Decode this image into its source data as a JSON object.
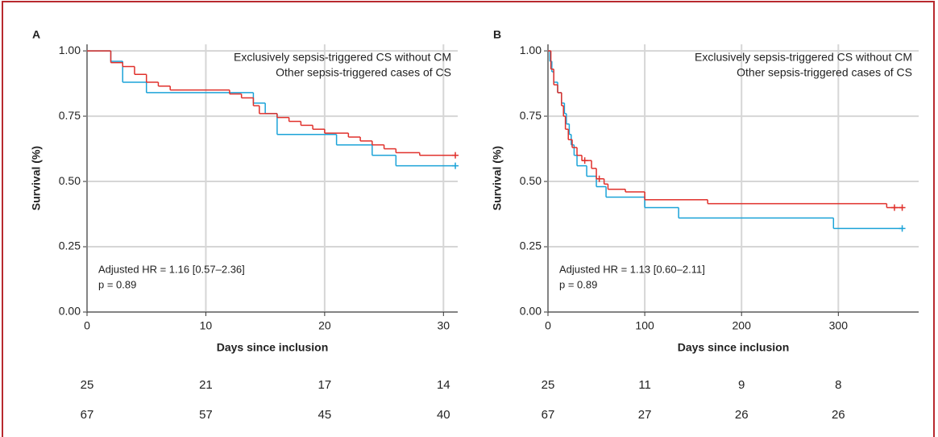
{
  "chart_data": [
    {
      "type": "step",
      "panel_label": "A",
      "xlabel": "Days since inclusion",
      "ylabel": "Survival (%)",
      "xlim": [
        0,
        31.2
      ],
      "ylim": [
        0,
        1.025
      ],
      "xticks": [
        0,
        10,
        20,
        30
      ],
      "yticks": [
        {
          "value": 0,
          "label": "0.00"
        },
        {
          "value": 0.25,
          "label": "0.25"
        },
        {
          "value": 0.5,
          "label": "0.50"
        },
        {
          "value": 0.75,
          "label": "0.75"
        },
        {
          "value": 1,
          "label": "1.00"
        }
      ],
      "grid": true,
      "annotations": [
        "Adjusted HR = 1.16 [0.57–2.36]",
        "p = 0.89"
      ],
      "series": [
        {
          "name": "Exclusively sepsis-triggered CS without CM",
          "color": "#1ba3d8",
          "x": [
            0,
            2,
            3,
            5,
            14,
            15,
            16,
            21,
            24,
            26,
            31
          ],
          "values": [
            1.0,
            0.96,
            0.88,
            0.84,
            0.8,
            0.76,
            0.68,
            0.64,
            0.6,
            0.56,
            0.56
          ],
          "censored": [],
          "at_risk": [
            25,
            21,
            17,
            14
          ]
        },
        {
          "name": "Other sepsis-triggered cases of CS",
          "color": "#e0302b",
          "x": [
            0,
            2,
            3,
            4,
            5,
            6,
            7,
            12,
            13,
            14,
            14.5,
            16,
            17,
            18,
            19,
            20,
            22,
            23,
            24,
            25,
            26,
            28,
            31
          ],
          "values": [
            1.0,
            0.955,
            0.94,
            0.91,
            0.88,
            0.865,
            0.85,
            0.835,
            0.82,
            0.79,
            0.76,
            0.745,
            0.73,
            0.715,
            0.7,
            0.685,
            0.67,
            0.655,
            0.64,
            0.625,
            0.61,
            0.6,
            0.6
          ],
          "censored": [],
          "at_risk": [
            67,
            57,
            45,
            40
          ]
        }
      ]
    },
    {
      "type": "step",
      "panel_label": "B",
      "xlabel": "Days since inclusion",
      "ylabel": "Survival (%)",
      "xlim": [
        0,
        383
      ],
      "ylim": [
        0,
        1.025
      ],
      "xticks": [
        0,
        100,
        200,
        300
      ],
      "yticks": [
        {
          "value": 0,
          "label": "0.00"
        },
        {
          "value": 0.25,
          "label": "0.25"
        },
        {
          "value": 0.5,
          "label": "0.50"
        },
        {
          "value": 0.75,
          "label": "0.75"
        },
        {
          "value": 1,
          "label": "1.00"
        }
      ],
      "grid": true,
      "annotations": [
        "Adjusted HR = 1.13 [0.60–2.11]",
        "p = 0.89"
      ],
      "series": [
        {
          "name": "Exclusively sepsis-triggered CS without CM",
          "color": "#1ba3d8",
          "x": [
            0,
            2,
            4,
            6,
            10,
            14,
            17,
            19,
            22,
            24,
            27,
            30,
            40,
            50,
            60,
            100,
            135,
            295,
            366
          ],
          "values": [
            1.0,
            0.96,
            0.92,
            0.88,
            0.84,
            0.8,
            0.76,
            0.72,
            0.68,
            0.64,
            0.6,
            0.56,
            0.52,
            0.48,
            0.44,
            0.4,
            0.36,
            0.32,
            0.32
          ],
          "censored": [],
          "at_risk": [
            25,
            11,
            9,
            8
          ]
        },
        {
          "name": "Other sepsis-triggered cases of CS",
          "color": "#e0302b",
          "x": [
            0,
            3,
            6,
            10,
            14,
            16,
            18,
            21,
            25,
            30,
            35,
            45,
            50,
            58,
            62,
            80,
            100,
            165,
            350,
            366
          ],
          "values": [
            1.0,
            0.93,
            0.87,
            0.84,
            0.79,
            0.75,
            0.7,
            0.66,
            0.63,
            0.6,
            0.58,
            0.55,
            0.51,
            0.49,
            0.47,
            0.46,
            0.43,
            0.415,
            0.4,
            0.4
          ],
          "censored": [
            38,
            53,
            358
          ],
          "at_risk": [
            67,
            27,
            26,
            26
          ]
        }
      ]
    }
  ]
}
